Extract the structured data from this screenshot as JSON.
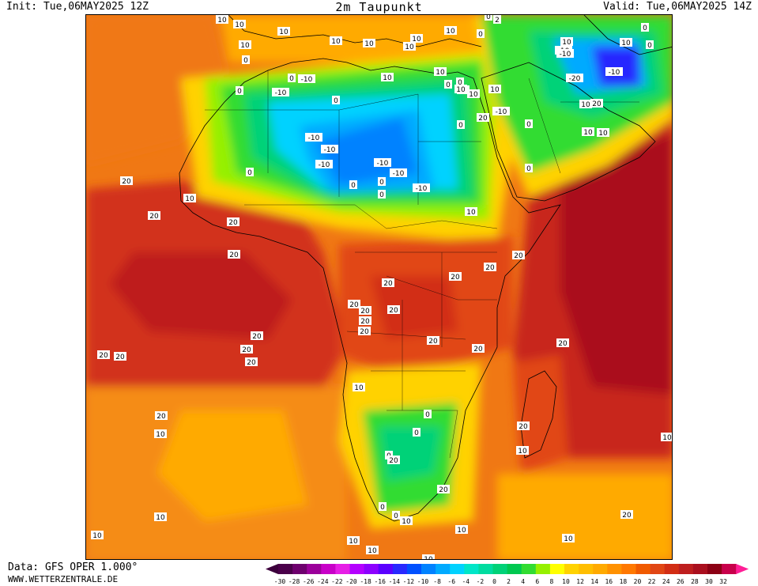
{
  "header": {
    "init": "Init: Tue,06MAY2025 12Z",
    "title": "2m Taupunkt",
    "valid": "Valid: Tue,06MAY2025 14Z"
  },
  "footer": {
    "data_source": "Data: GFS OPER 1.000°",
    "website": "WWW.WETTERZENTRALE.DE"
  },
  "legend": {
    "ticks": [
      "-30",
      "-28",
      "-26",
      "-24",
      "-22",
      "-20",
      "-18",
      "-16",
      "-14",
      "-12",
      "-10",
      "-8",
      "-6",
      "-4",
      "-2",
      "0",
      "2",
      "4",
      "6",
      "8",
      "10",
      "12",
      "14",
      "16",
      "18",
      "20",
      "22",
      "24",
      "26",
      "28",
      "30",
      "32"
    ],
    "colors": [
      "#4a004a",
      "#6e006e",
      "#9b009b",
      "#c800c8",
      "#e61ee6",
      "#b400ff",
      "#8c00ff",
      "#5a00ff",
      "#2828ff",
      "#0050ff",
      "#0082ff",
      "#00aaff",
      "#00d2ff",
      "#00e6c8",
      "#00dca0",
      "#00d278",
      "#00c850",
      "#32dc32",
      "#96f000",
      "#ffff00",
      "#ffd200",
      "#ffbe00",
      "#ffaa00",
      "#ff9100",
      "#ff7800",
      "#f05a00",
      "#e14614",
      "#d22d14",
      "#be1e1e",
      "#aa0f1e",
      "#8c0014",
      "#c8004b"
    ],
    "arrow_left_color": "#3c003c",
    "arrow_right_color": "#ff1e96"
  },
  "map": {
    "labels": [
      {
        "t": "10"
      },
      {
        "t": "10"
      },
      {
        "t": "10"
      },
      {
        "t": "10"
      },
      {
        "t": "10"
      },
      {
        "t": "10"
      },
      {
        "t": "10"
      },
      {
        "t": "0"
      },
      {
        "t": "10"
      },
      {
        "t": "0"
      },
      {
        "t": "2"
      },
      {
        "t": "10"
      },
      {
        "t": "0"
      },
      {
        "t": "10"
      },
      {
        "t": "10"
      },
      {
        "t": "0"
      },
      {
        "t": "-10"
      },
      {
        "t": "0"
      },
      {
        "t": "-20"
      },
      {
        "t": "-10"
      },
      {
        "t": "-10"
      },
      {
        "t": "0"
      },
      {
        "t": "-10"
      },
      {
        "t": "0"
      },
      {
        "t": "-10"
      },
      {
        "t": "10"
      },
      {
        "t": "10"
      },
      {
        "t": "0"
      },
      {
        "t": "10"
      },
      {
        "t": "0"
      },
      {
        "t": "10"
      },
      {
        "t": "0"
      },
      {
        "t": "20"
      },
      {
        "t": "10"
      },
      {
        "t": "-10"
      },
      {
        "t": "0"
      },
      {
        "t": "20"
      },
      {
        "t": "0"
      },
      {
        "t": "-10"
      },
      {
        "t": "-10"
      },
      {
        "t": "-10"
      },
      {
        "t": "-10"
      },
      {
        "t": "-10"
      },
      {
        "t": "0"
      },
      {
        "t": "0"
      },
      {
        "t": "0"
      },
      {
        "t": "0"
      },
      {
        "t": "-10"
      },
      {
        "t": "0"
      },
      {
        "t": "10"
      },
      {
        "t": "10"
      },
      {
        "t": "20"
      },
      {
        "t": "20"
      },
      {
        "t": "0"
      },
      {
        "t": "10"
      },
      {
        "t": "10"
      },
      {
        "t": "10"
      },
      {
        "t": "20"
      },
      {
        "t": "10"
      },
      {
        "t": "20"
      },
      {
        "t": "20"
      },
      {
        "t": "20"
      },
      {
        "t": "20"
      },
      {
        "t": "20"
      },
      {
        "t": "20"
      },
      {
        "t": "20"
      },
      {
        "t": "20"
      },
      {
        "t": "20"
      },
      {
        "t": "20"
      },
      {
        "t": "20"
      },
      {
        "t": "20"
      },
      {
        "t": "20"
      },
      {
        "t": "20"
      },
      {
        "t": "20"
      },
      {
        "t": "20"
      },
      {
        "t": "20"
      },
      {
        "t": "20"
      },
      {
        "t": "10"
      },
      {
        "t": "10"
      },
      {
        "t": "0"
      },
      {
        "t": "0"
      },
      {
        "t": "0"
      },
      {
        "t": "20"
      },
      {
        "t": "20"
      },
      {
        "t": "10"
      },
      {
        "t": "0"
      },
      {
        "t": "0"
      },
      {
        "t": "10"
      },
      {
        "t": "10"
      },
      {
        "t": "20"
      },
      {
        "t": "10"
      },
      {
        "t": "10"
      },
      {
        "t": "10"
      },
      {
        "t": "10"
      },
      {
        "t": "10"
      },
      {
        "t": "20"
      },
      {
        "t": "10"
      },
      {
        "t": "10"
      },
      {
        "t": "20"
      }
    ]
  }
}
